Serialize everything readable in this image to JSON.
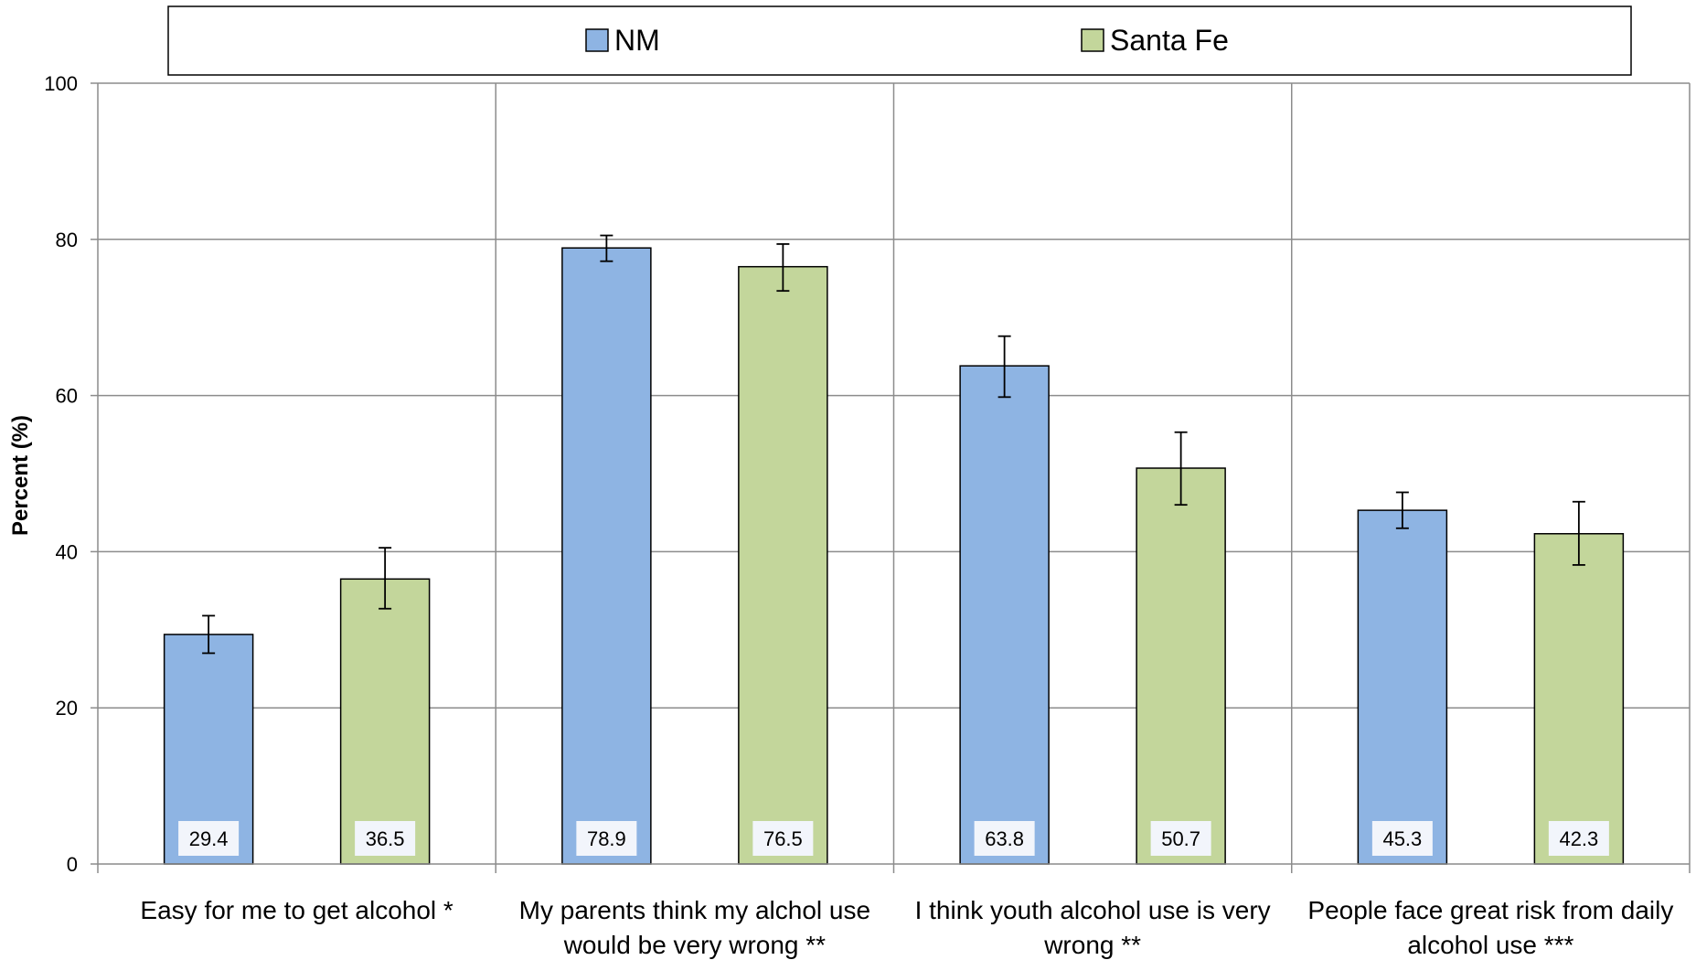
{
  "chart_data": {
    "type": "bar",
    "title": "",
    "xlabel": "",
    "ylabel": "Percent (%)",
    "ylim": [
      0,
      100
    ],
    "yticks": [
      0,
      20,
      40,
      60,
      80,
      100
    ],
    "grid": true,
    "legend_position": "top",
    "categories": [
      [
        "Easy for me to get alcohol *"
      ],
      [
        "My parents think my alchol use",
        "would be very wrong **"
      ],
      [
        "I think youth alcohol use is very",
        "wrong **"
      ],
      [
        "People face great risk from daily",
        "alcohol use ***"
      ]
    ],
    "series": [
      {
        "name": "NM",
        "color": "#8EB4E3",
        "values": [
          29.4,
          78.9,
          63.8,
          45.3
        ],
        "error_low": [
          27.0,
          77.2,
          59.8,
          43.0
        ],
        "error_high": [
          31.8,
          80.5,
          67.6,
          47.6
        ]
      },
      {
        "name": "Santa Fe",
        "color": "#C3D69B",
        "values": [
          36.5,
          76.5,
          50.7,
          42.3
        ],
        "error_low": [
          32.7,
          73.4,
          46.0,
          38.3
        ],
        "error_high": [
          40.5,
          79.4,
          55.3,
          46.4
        ]
      }
    ]
  }
}
